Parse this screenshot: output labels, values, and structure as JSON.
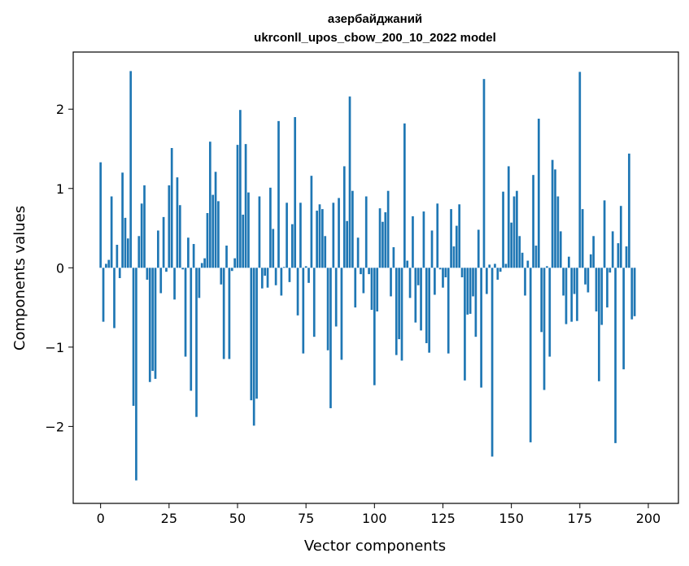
{
  "chart_data": {
    "type": "bar",
    "title_line1": "азербайджаний",
    "title_line2": "ukrconll_upos_cbow_200_10_2022 model",
    "xlabel": "Vector components",
    "ylabel": "Components values",
    "xlim": [
      -10,
      211
    ],
    "ylim": [
      -2.97,
      2.72
    ],
    "xticks": [
      0,
      25,
      50,
      75,
      100,
      125,
      150,
      175,
      200
    ],
    "yticks": [
      -2,
      -1,
      0,
      1,
      2
    ],
    "xtick_labels": [
      "0",
      "25",
      "50",
      "75",
      "100",
      "125",
      "150",
      "175",
      "200"
    ],
    "ytick_labels": [
      "−2",
      "−1",
      "0",
      "1",
      "2"
    ],
    "grid": false,
    "bar_color": "#1f77b4",
    "values": [
      1.33,
      -0.68,
      0.05,
      0.1,
      0.9,
      -0.76,
      0.29,
      -0.13,
      1.2,
      0.63,
      0.37,
      2.48,
      -1.74,
      -2.68,
      0.4,
      0.81,
      1.04,
      -0.15,
      -1.44,
      -1.3,
      -1.4,
      0.47,
      -0.32,
      0.64,
      -0.05,
      1.04,
      1.51,
      -0.4,
      1.14,
      0.79,
      -0.02,
      -1.12,
      0.38,
      -1.55,
      0.3,
      -1.88,
      -0.38,
      0.06,
      0.12,
      0.69,
      1.59,
      0.92,
      1.21,
      0.84,
      -0.21,
      -1.15,
      0.28,
      -1.15,
      -0.04,
      0.12,
      1.55,
      1.99,
      0.67,
      1.56,
      0.95,
      -1.67,
      -1.99,
      -1.65,
      0.9,
      -0.26,
      -0.1,
      -0.25,
      1.01,
      0.49,
      -0.22,
      1.85,
      -0.35,
      0.01,
      0.82,
      -0.18,
      0.55,
      1.9,
      -0.6,
      0.82,
      -1.08,
      0.02,
      -0.19,
      1.16,
      -0.87,
      0.72,
      0.8,
      0.74,
      0.4,
      -1.04,
      -1.77,
      0.82,
      -0.74,
      0.88,
      -1.16,
      1.28,
      0.59,
      2.16,
      0.97,
      -0.5,
      0.38,
      -0.08,
      -0.32,
      0.9,
      -0.08,
      -0.53,
      -1.48,
      -0.55,
      0.75,
      0.58,
      0.7,
      0.97,
      -0.36,
      0.26,
      -1.1,
      -0.9,
      -1.17,
      1.82,
      0.09,
      -0.38,
      0.65,
      -0.69,
      -0.22,
      -0.79,
      0.71,
      -0.95,
      -1.07,
      0.47,
      -0.34,
      0.81,
      -0.02,
      -0.25,
      -0.12,
      -1.08,
      0.74,
      0.27,
      0.53,
      0.8,
      -0.12,
      -1.42,
      -0.59,
      -0.58,
      -0.36,
      -0.87,
      0.48,
      -1.51,
      2.38,
      -0.33,
      0.04,
      -2.38,
      0.05,
      -0.15,
      -0.05,
      0.96,
      0.05,
      1.28,
      0.57,
      0.9,
      0.97,
      0.4,
      0.19,
      -0.35,
      0.09,
      -2.2,
      1.17,
      0.28,
      1.88,
      -0.81,
      -1.54,
      0.02,
      -1.12,
      1.36,
      1.24,
      0.9,
      0.46,
      -0.35,
      -0.71,
      0.14,
      -0.68,
      -0.33,
      -0.67,
      2.47,
      0.74,
      -0.21,
      -0.31,
      0.17,
      0.4,
      -0.55,
      -1.43,
      -0.72,
      0.85,
      -0.5,
      -0.06,
      0.46,
      -2.21,
      0.31,
      0.78,
      -1.28,
      0.27,
      1.44,
      -0.65,
      -0.61
    ]
  }
}
